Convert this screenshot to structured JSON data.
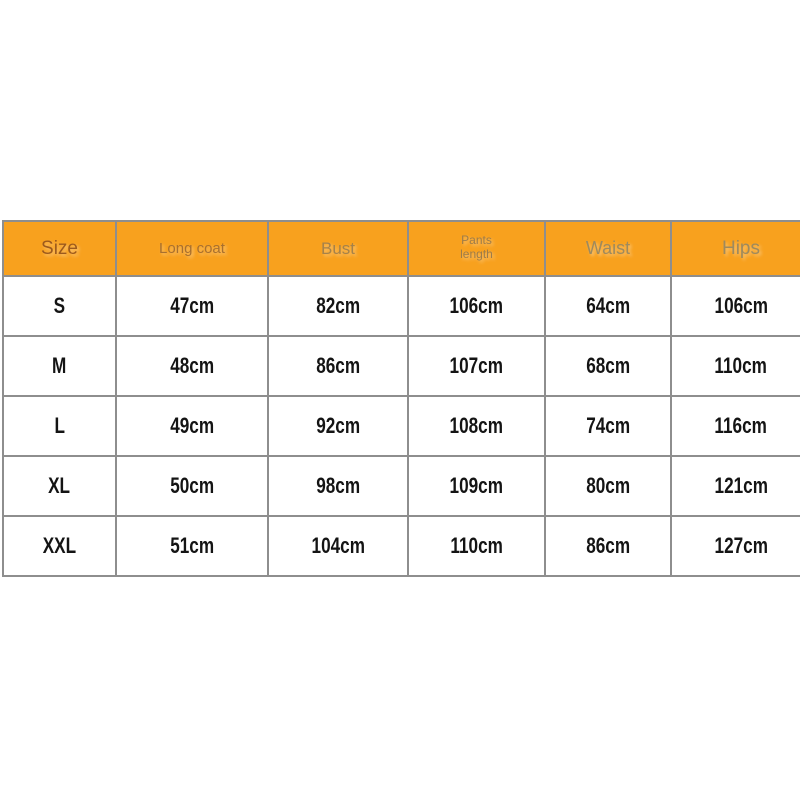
{
  "page": {
    "background": "#ffffff"
  },
  "colors": {
    "header_bg": "#f8a11e",
    "border": "#8e8e8e",
    "body_text": "#141414"
  },
  "table": {
    "col_keys": [
      "size",
      "long-coat",
      "bust",
      "pants-length",
      "waist",
      "hips"
    ],
    "header_display": [
      "Size",
      "Long coat",
      "Bust",
      "Pants\nlength",
      "Waist",
      "Hips"
    ]
  },
  "chart_data": {
    "type": "table",
    "columns": [
      "Size",
      "Long coat",
      "Bust",
      "Pants length",
      "Waist",
      "Hips"
    ],
    "rows": [
      [
        "S",
        "47cm",
        "82cm",
        "106cm",
        "64cm",
        "106cm"
      ],
      [
        "M",
        "48cm",
        "86cm",
        "107cm",
        "68cm",
        "110cm"
      ],
      [
        "L",
        "49cm",
        "92cm",
        "108cm",
        "74cm",
        "116cm"
      ],
      [
        "XL",
        "50cm",
        "98cm",
        "109cm",
        "80cm",
        "121cm"
      ],
      [
        "XXL",
        "51cm",
        "104cm",
        "110cm",
        "86cm",
        "127cm"
      ]
    ],
    "layout": {
      "legend": "none",
      "grid": "on",
      "header_fill": "#f8a11e",
      "grid_color": "#8e8e8e"
    }
  }
}
